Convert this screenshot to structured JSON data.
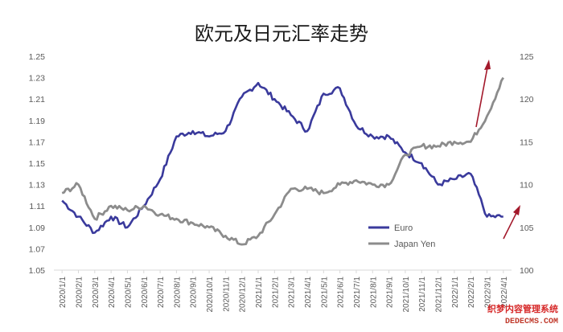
{
  "chart_data": {
    "type": "line",
    "title": "欧元及日元汇率走势",
    "y_left": {
      "ticks": [
        "1.25",
        "1.23",
        "1.21",
        "1.19",
        "1.17",
        "1.15",
        "1.13",
        "1.11",
        "1.09",
        "1.07",
        "1.05"
      ],
      "ylim": [
        1.05,
        1.25
      ]
    },
    "y_right": {
      "ticks": [
        "125",
        "120",
        "115",
        "110",
        "105",
        "100"
      ],
      "ylim": [
        100,
        125
      ]
    },
    "categories": [
      "2020/1/1",
      "2020/2/1",
      "2020/3/1",
      "2020/4/1",
      "2020/5/1",
      "2020/6/1",
      "2020/7/1",
      "2020/8/1",
      "2020/9/1",
      "2020/10/1",
      "2020/11/1",
      "2020/12/1",
      "2021/1/1",
      "2021/2/1",
      "2021/3/1",
      "2021/4/1",
      "2021/5/1",
      "2021/6/1",
      "2021/7/1",
      "2021/8/1",
      "2021/9/1",
      "2021/10/1",
      "2021/11/1",
      "2021/12/1",
      "2022/1/1",
      "2022/2/1",
      "2022/3/1",
      "2022/4/1"
    ],
    "series": [
      {
        "name": "Euro",
        "axis": "left",
        "color": "#3a3a9c",
        "values": [
          1.115,
          1.1,
          1.085,
          1.1,
          1.09,
          1.11,
          1.135,
          1.175,
          1.18,
          1.175,
          1.18,
          1.212,
          1.225,
          1.21,
          1.195,
          1.18,
          1.215,
          1.22,
          1.185,
          1.175,
          1.175,
          1.16,
          1.15,
          1.13,
          1.135,
          1.14,
          1.1,
          1.1
        ]
      },
      {
        "name": "Japan Yen",
        "axis": "right",
        "color": "#8c8c8c",
        "values": [
          109.0,
          110.0,
          106.0,
          107.5,
          107.0,
          107.5,
          106.5,
          106.0,
          105.5,
          105.0,
          104.0,
          103.0,
          104.0,
          106.5,
          109.5,
          109.5,
          109.0,
          110.0,
          110.5,
          110.0,
          110.0,
          113.5,
          114.5,
          114.5,
          115.0,
          115.0,
          118.0,
          122.5
        ]
      }
    ],
    "grid": false,
    "legend_position": "lower-right"
  },
  "watermark": {
    "line1": "织梦内容管理系统",
    "line2": "DEDECMS.COM"
  }
}
